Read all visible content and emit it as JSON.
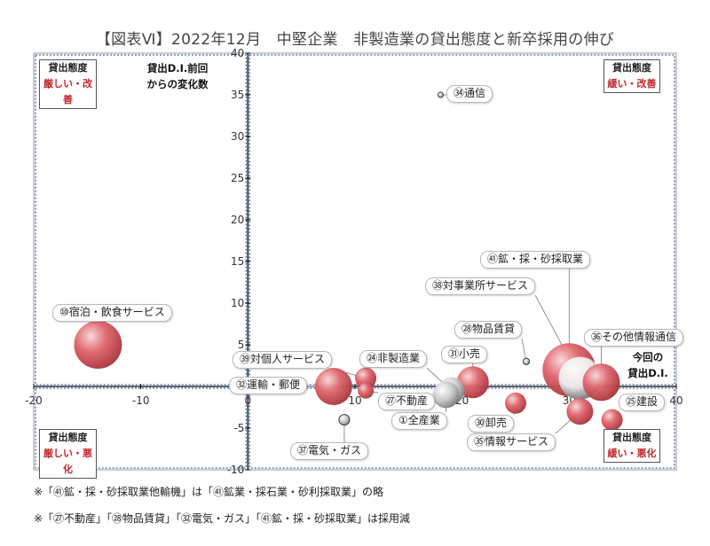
{
  "title": "【図表Ⅵ】2022年12月　中堅企業　非製造業の貸出態度と新卒採用の伸び",
  "notes": [
    "※「㊶鉱・採・砂採取業他輸機」は「㊶鉱業・採石業・砂利採取業」の略",
    "※「㉗不動産」「㉘物品賃貸」「㉜電気・ガス」「㊶鉱・採・砂採取業」は採用減"
  ],
  "quadrants": {
    "top_left": {
      "line1": "貸出態度",
      "line2": "厳しい・改善"
    },
    "top_right": {
      "line1": "貸出態度",
      "line2": "緩い・改善"
    },
    "bottom_left": {
      "line1": "貸出態度",
      "line2": "厳しい・悪化"
    },
    "bottom_right": {
      "line1": "貸出態度",
      "line2": "緩い・悪化"
    }
  },
  "axis_labels": {
    "y": [
      "貸出D.I.前回",
      "からの変化数"
    ],
    "x": [
      "今回の",
      "貸出D.I."
    ]
  },
  "colors": {
    "bubble": "#e0646c",
    "bubble_highlight": "#f8d6d8",
    "total_bubble": "#d8d8d8",
    "frame": "#1f3f8f",
    "axis": "#000000"
  },
  "chart_data": {
    "type": "bubble",
    "xlim": [
      -20,
      40
    ],
    "ylim": [
      -10,
      40
    ],
    "x_ticks": [
      -20,
      -10,
      0,
      10,
      20,
      30,
      40
    ],
    "y_ticks": [
      -10,
      -5,
      0,
      5,
      10,
      15,
      20,
      25,
      30,
      35,
      40
    ],
    "points": [
      {
        "label": "㉞通信",
        "x": 18,
        "y": 35,
        "size": 0.5
      },
      {
        "label": "⑩宿泊・飲食サービス",
        "x": -14,
        "y": 5,
        "size": 4.5
      },
      {
        "label": "㊶鉱・採・砂採取業",
        "x": 30,
        "y": 2,
        "size": 5
      },
      {
        "label": "㊳対事業所サービス",
        "x": 31,
        "y": 1,
        "size": 4
      },
      {
        "label": "㊱その他情報通信",
        "x": 33,
        "y": 0.5,
        "size": 3.5
      },
      {
        "label": "㉘物品賃貸",
        "x": 26,
        "y": 3,
        "size": 0.6
      },
      {
        "label": "㉛小売",
        "x": 21,
        "y": 0.5,
        "size": 3
      },
      {
        "label": "㉔非製造業",
        "x": 19,
        "y": -0.5,
        "size": 2.5
      },
      {
        "label": "①全産業",
        "x": 18.5,
        "y": -1,
        "size": 2.5
      },
      {
        "label": "㉗不動産",
        "x": 11,
        "y": -0.5,
        "size": 1.5
      },
      {
        "label": "㊴対個人サービス",
        "x": 11,
        "y": 1,
        "size": 2
      },
      {
        "label": "㉜運輸・郵便",
        "x": 8,
        "y": 0,
        "size": 3.5
      },
      {
        "label": "㉚卸売",
        "x": 25,
        "y": -2,
        "size": 2
      },
      {
        "label": "㉟情報サービス",
        "x": 31,
        "y": -3,
        "size": 2.5
      },
      {
        "label": "㉕建設",
        "x": 34,
        "y": -4,
        "size": 2
      },
      {
        "label": "㊲電気・ガス",
        "x": 9,
        "y": -4,
        "size": 1
      }
    ]
  }
}
